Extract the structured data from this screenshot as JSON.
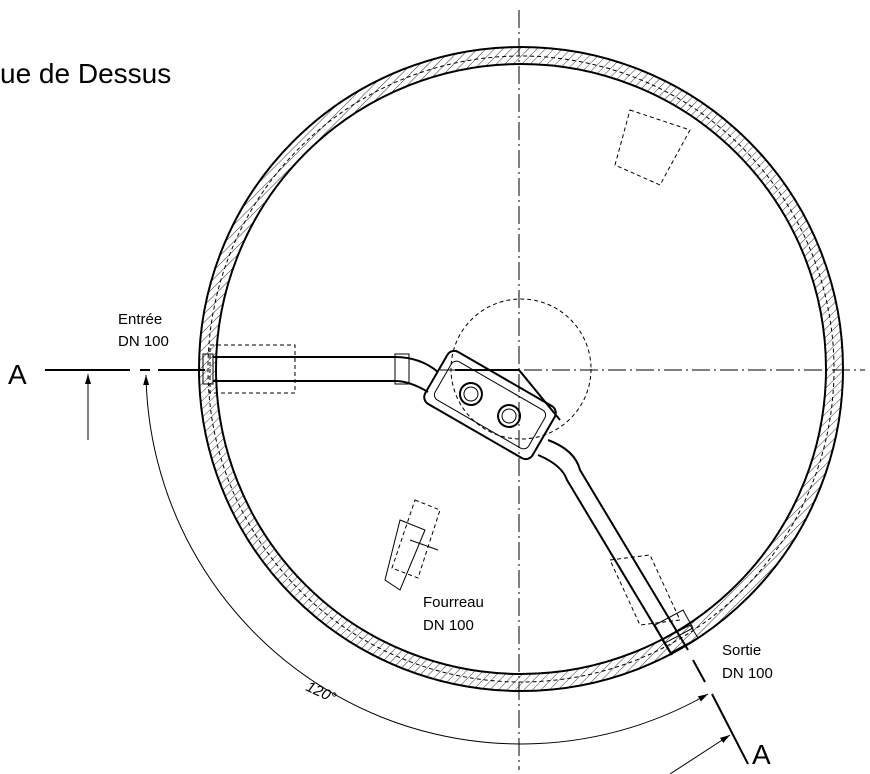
{
  "title": "ue de Dessus",
  "inlet": {
    "label": "Entrée",
    "size": "DN 100"
  },
  "sleeve": {
    "label": "Fourreau",
    "size": "DN 100"
  },
  "outlet": {
    "label": "Sortie",
    "size": "DN 100"
  },
  "section": {
    "left": "A",
    "right": "A"
  },
  "angle": "120°"
}
